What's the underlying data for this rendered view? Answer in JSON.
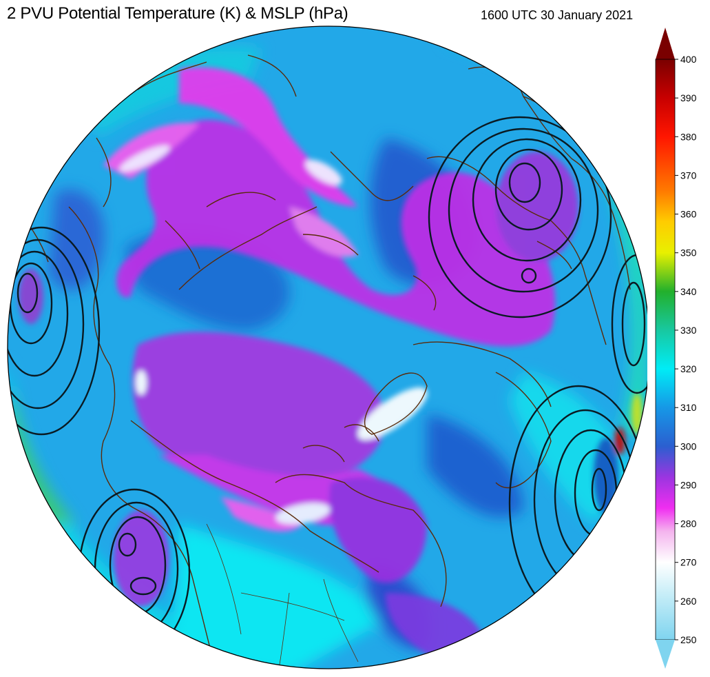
{
  "header": {
    "title": "2 PVU Potential Temperature (K) & MSLP (hPa)",
    "timestamp": "1600 UTC 30 January 2021"
  },
  "colorbar": {
    "min": 250,
    "max": 400,
    "extend": "both",
    "ticks": [
      "250",
      "260",
      "270",
      "280",
      "290",
      "300",
      "310",
      "320",
      "330",
      "340",
      "350",
      "360",
      "370",
      "380",
      "390",
      "400"
    ],
    "stops": [
      {
        "value": 250,
        "color": "#7fd4ef"
      },
      {
        "value": 262,
        "color": "#c8eef8"
      },
      {
        "value": 270,
        "color": "#ffffff"
      },
      {
        "value": 278,
        "color": "#f4b4ee"
      },
      {
        "value": 284,
        "color": "#f02ef0"
      },
      {
        "value": 292,
        "color": "#9b35e0"
      },
      {
        "value": 300,
        "color": "#2b5fd0"
      },
      {
        "value": 310,
        "color": "#1698e6"
      },
      {
        "value": 320,
        "color": "#00ecf6"
      },
      {
        "value": 330,
        "color": "#18c8a0"
      },
      {
        "value": 340,
        "color": "#22b02c"
      },
      {
        "value": 350,
        "color": "#e8f000"
      },
      {
        "value": 358,
        "color": "#ffcc00"
      },
      {
        "value": 366,
        "color": "#ff7a00"
      },
      {
        "value": 380,
        "color": "#ff1600"
      },
      {
        "value": 390,
        "color": "#c80000"
      },
      {
        "value": 400,
        "color": "#7a0000"
      }
    ]
  },
  "map": {
    "projection": "north-polar-orthographic",
    "fields": [
      "2 PVU potential temperature",
      "mean sea level pressure contours"
    ],
    "colors": {
      "background": "#2aa6e6",
      "coastline": "#5a2a0a",
      "pressure_contour": "#0a1a22",
      "globe_edge": "#000000"
    }
  }
}
